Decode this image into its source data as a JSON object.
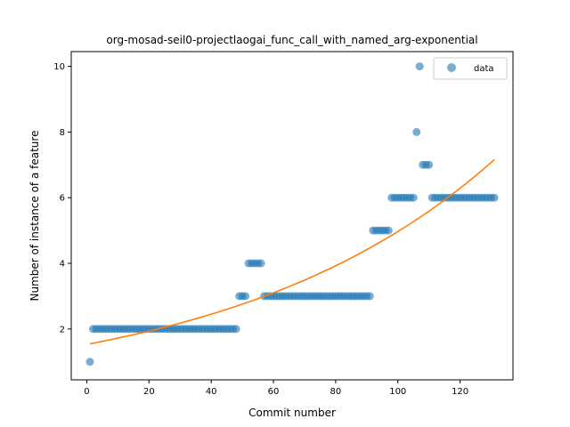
{
  "chart_data": {
    "type": "scatter",
    "title": "org-mosad-seil0-projectlaogai_func_call_with_named_arg-exponential",
    "xlabel": "Commit number",
    "ylabel": "Number of instance of a feature",
    "xlim": [
      -5,
      137
    ],
    "ylim": [
      0.45,
      10.45
    ],
    "xticks": [
      0,
      20,
      40,
      60,
      80,
      100,
      120
    ],
    "yticks": [
      2,
      4,
      6,
      8,
      10
    ],
    "grid": false,
    "legend": {
      "position": "top-right",
      "entries": [
        "data"
      ]
    },
    "colors": {
      "data": "#1f77b4",
      "fit": "#ff7f0e"
    },
    "series": [
      {
        "name": "data",
        "kind": "scatter",
        "x": [
          1,
          2,
          3,
          4,
          5,
          6,
          7,
          8,
          9,
          10,
          11,
          12,
          13,
          14,
          15,
          16,
          17,
          18,
          19,
          20,
          21,
          22,
          23,
          24,
          25,
          26,
          27,
          28,
          29,
          30,
          31,
          32,
          33,
          34,
          35,
          36,
          37,
          38,
          39,
          40,
          41,
          42,
          43,
          44,
          45,
          46,
          47,
          48,
          49,
          50,
          51,
          52,
          53,
          54,
          55,
          56,
          57,
          58,
          59,
          60,
          61,
          62,
          63,
          64,
          65,
          66,
          67,
          68,
          69,
          70,
          71,
          72,
          73,
          74,
          75,
          76,
          77,
          78,
          79,
          80,
          81,
          82,
          83,
          84,
          85,
          86,
          87,
          88,
          89,
          90,
          91,
          92,
          93,
          94,
          95,
          96,
          97,
          98,
          99,
          100,
          101,
          102,
          103,
          104,
          105,
          106,
          107,
          108,
          109,
          110,
          111,
          112,
          113,
          114,
          115,
          116,
          117,
          118,
          119,
          120,
          121,
          122,
          123,
          124,
          125,
          126,
          127,
          128,
          129,
          130,
          131
        ],
        "y": [
          1,
          2,
          2,
          2,
          2,
          2,
          2,
          2,
          2,
          2,
          2,
          2,
          2,
          2,
          2,
          2,
          2,
          2,
          2,
          2,
          2,
          2,
          2,
          2,
          2,
          2,
          2,
          2,
          2,
          2,
          2,
          2,
          2,
          2,
          2,
          2,
          2,
          2,
          2,
          2,
          2,
          2,
          2,
          2,
          2,
          2,
          2,
          2,
          3,
          3,
          3,
          4,
          4,
          4,
          4,
          4,
          3,
          3,
          3,
          3,
          3,
          3,
          3,
          3,
          3,
          3,
          3,
          3,
          3,
          3,
          3,
          3,
          3,
          3,
          3,
          3,
          3,
          3,
          3,
          3,
          3,
          3,
          3,
          3,
          3,
          3,
          3,
          3,
          3,
          3,
          3,
          5,
          5,
          5,
          5,
          5,
          5,
          6,
          6,
          6,
          6,
          6,
          6,
          6,
          6,
          8,
          10,
          7,
          7,
          7,
          6,
          6,
          6,
          6,
          6,
          6,
          6,
          6,
          6,
          6,
          6,
          6,
          6,
          6,
          6,
          6,
          6,
          6,
          6,
          6,
          6
        ]
      },
      {
        "kind": "line",
        "fit": {
          "a": 1.53,
          "b": 0.01178
        },
        "x_range": [
          1,
          131
        ]
      }
    ]
  }
}
